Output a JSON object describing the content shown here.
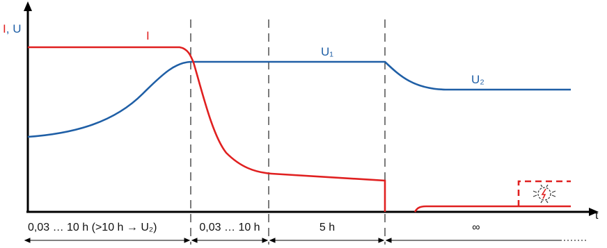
{
  "diagram": {
    "y_axis_label": {
      "part1": "I",
      "sep": ", ",
      "part2": "U"
    },
    "x_axis_label": "t",
    "curves": {
      "current_label": "I",
      "voltage1_label": "U₁",
      "voltage2_label": "U₂"
    },
    "phases": [
      "0,03 … 10 h (>10 h → U₂)",
      "0,03 … 10 h",
      "5 h",
      "∞"
    ],
    "colors": {
      "current": "#e02020",
      "voltage": "#1f5fa6",
      "axis": "#000000",
      "divider": "#222222"
    },
    "icons": [
      "lightning-in-circle-icon"
    ]
  }
}
